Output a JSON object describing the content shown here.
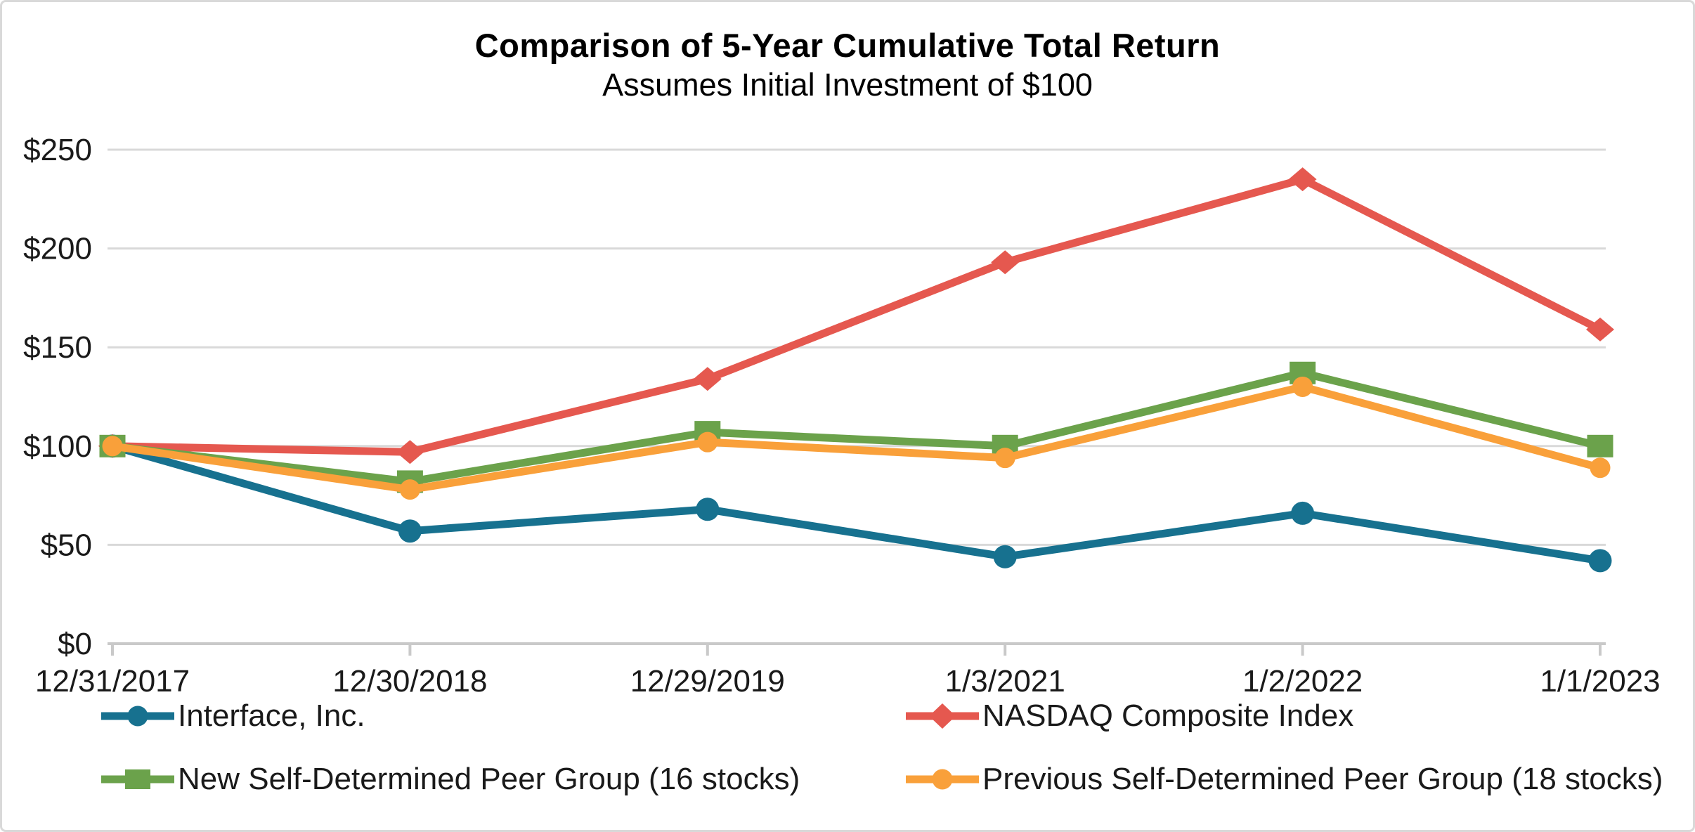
{
  "chart_data": {
    "type": "line",
    "title": "Comparison of 5-Year Cumulative Total Return",
    "subtitle": "Assumes Initial Investment of $100",
    "categories": [
      "12/31/2017",
      "12/30/2018",
      "12/29/2019",
      "1/3/2021",
      "1/2/2022",
      "1/1/2023"
    ],
    "y_ticks": {
      "values": [
        0,
        50,
        100,
        150,
        200,
        250
      ],
      "labels": [
        "$0",
        "$50",
        "$100",
        "$150",
        "$200",
        "$250"
      ]
    },
    "ylim": [
      0,
      250
    ],
    "grid": true,
    "legend_position": "bottom",
    "gridline_color": "#d9d9d9",
    "axis_color": "#c9c9c9",
    "text_color": "#1a1a1a",
    "series": [
      {
        "name": "Interface, Inc.",
        "color": "#17718f",
        "marker": "circle",
        "marker_size": 16.5,
        "values": [
          100,
          57,
          68,
          44,
          66,
          42
        ]
      },
      {
        "name": "NASDAQ Composite Index",
        "color": "#e5584f",
        "marker": "diamond",
        "marker_size": 20,
        "values": [
          100,
          97,
          134,
          193,
          235,
          159
        ]
      },
      {
        "name": "New Self-Determined Peer Group (16 stocks)",
        "color": "#6ba24b",
        "marker": "square",
        "marker_size": 18,
        "values": [
          100,
          82,
          107,
          100,
          137,
          100
        ]
      },
      {
        "name": "Previous Self-Determined Peer Group (18 stocks)",
        "color": "#f9a03a",
        "marker": "circle",
        "marker_size": 14.5,
        "values": [
          100,
          78,
          102,
          94,
          130,
          89
        ]
      }
    ]
  }
}
